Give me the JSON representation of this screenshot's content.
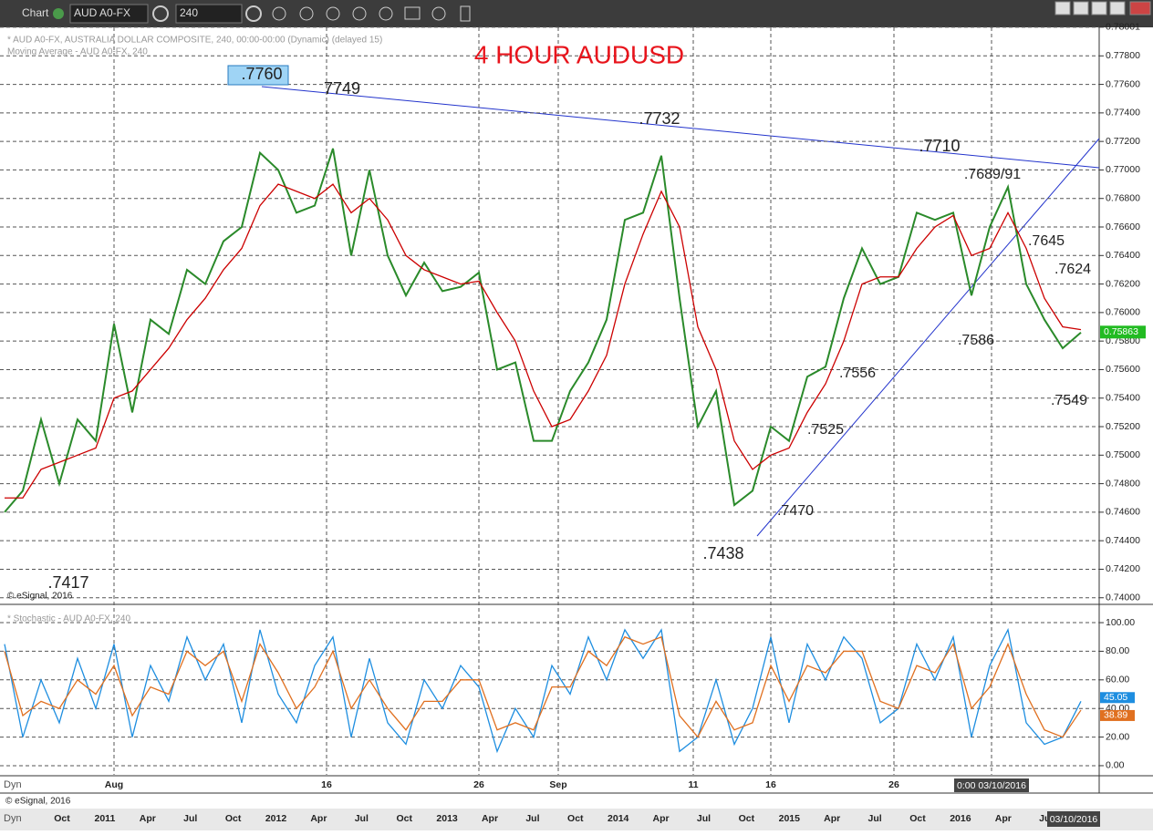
{
  "toolbar": {
    "app": "Chart",
    "symbol": "AUD A0-FX",
    "interval": "240"
  },
  "chart_data": [
    {
      "type": "line",
      "header": "* AUD A0-FX, AUSTRALIA DOLLAR COMPOSITE, 240, 00:00-00:00 (Dynamic) (delayed 15)",
      "subheader": "Moving Average - AUD A0-FX, 240",
      "title": "4 HOUR AUDUSD",
      "copyright": "© eSignal, 2016",
      "ylim": [
        0.7396,
        0.78
      ],
      "yticks": [
        0.78001,
        {
          "value": 0.778,
          "label": "0.77800"
        },
        {
          "value": 0.776,
          "label": "0.77600"
        },
        {
          "value": 0.774,
          "label": "0.77400"
        },
        {
          "value": 0.772,
          "label": "0.77200"
        },
        {
          "value": 0.77,
          "label": "0.77000"
        },
        {
          "value": 0.768,
          "label": "0.76800"
        },
        {
          "value": 0.766,
          "label": "0.76600"
        },
        {
          "value": 0.764,
          "label": "0.76400"
        },
        {
          "value": 0.762,
          "label": "0.76200"
        },
        {
          "value": 0.76,
          "label": "0.76000"
        },
        {
          "value": 0.758,
          "label": "0.75800"
        },
        {
          "value": 0.756,
          "label": "0.75600"
        },
        {
          "value": 0.754,
          "label": "0.75400"
        },
        {
          "value": 0.752,
          "label": "0.75200"
        },
        {
          "value": 0.75,
          "label": "0.75000"
        },
        {
          "value": 0.748,
          "label": "0.74800"
        },
        {
          "value": 0.746,
          "label": "0.74600"
        },
        {
          "value": 0.744,
          "label": "0.74400"
        },
        {
          "value": 0.742,
          "label": "0.74200"
        },
        {
          "value": 0.74,
          "label": "0.74000"
        }
      ],
      "series": [
        {
          "color": "#2a8a2a",
          "values": [
            0.746,
            0.7475,
            0.7525,
            0.748,
            0.7525,
            0.751,
            0.7592,
            0.753,
            0.7595,
            0.7585,
            0.763,
            0.762,
            0.765,
            0.766,
            0.7712,
            0.77,
            0.767,
            0.7675,
            0.7715,
            0.764,
            0.77,
            0.764,
            0.7612,
            0.7635,
            0.7615,
            0.7618,
            0.7628,
            0.756,
            0.7565,
            0.751,
            0.751,
            0.7545,
            0.7565,
            0.7595,
            0.7665,
            0.767,
            0.771,
            0.761,
            0.752,
            0.7545,
            0.7465,
            0.7475,
            0.752,
            0.751,
            0.7555,
            0.7562,
            0.761,
            0.7645,
            0.762,
            0.7625,
            0.767,
            0.7665,
            0.767,
            0.7612,
            0.766,
            0.7688,
            0.762,
            0.7595,
            0.7575,
            0.7586
          ]
        },
        {
          "color": "#cc0000",
          "values": [
            0.747,
            0.747,
            0.749,
            0.7495,
            0.75,
            0.7505,
            0.754,
            0.7545,
            0.756,
            0.7575,
            0.7595,
            0.761,
            0.763,
            0.7645,
            0.7675,
            0.769,
            0.7685,
            0.768,
            0.769,
            0.767,
            0.768,
            0.7665,
            0.764,
            0.763,
            0.7625,
            0.762,
            0.7622,
            0.76,
            0.758,
            0.7545,
            0.752,
            0.7525,
            0.7545,
            0.757,
            0.762,
            0.7655,
            0.7685,
            0.766,
            0.759,
            0.756,
            0.751,
            0.749,
            0.75,
            0.7505,
            0.753,
            0.755,
            0.758,
            0.762,
            0.7625,
            0.7625,
            0.7645,
            0.766,
            0.7668,
            0.764,
            0.7645,
            0.767,
            0.7645,
            0.761,
            0.759,
            0.7588
          ]
        }
      ],
      "current": 0.75863,
      "annotations": [
        ".7760",
        "7749",
        ".7732",
        ".7710",
        ".7689/91",
        ".7645",
        ".7624",
        ".7586",
        ".7549",
        ".7556",
        ".7525",
        ".7470",
        ".7438",
        ".7417"
      ]
    },
    {
      "type": "line",
      "header": "* Stochastic - AUD A0-FX, 240",
      "ylim": [
        -6.4,
        111.5
      ],
      "yticks": [
        {
          "value": 100,
          "label": "100.00"
        },
        {
          "value": 80,
          "label": "80.00"
        },
        {
          "value": 60,
          "label": "60.00"
        },
        {
          "value": 40,
          "label": "40.00"
        },
        {
          "value": 20,
          "label": "20.00"
        },
        {
          "value": 0,
          "label": "0.00"
        }
      ],
      "series": [
        {
          "color": "#1e8ee0",
          "values": [
            85,
            20,
            60,
            30,
            75,
            40,
            85,
            20,
            70,
            45,
            90,
            60,
            85,
            30,
            95,
            50,
            30,
            70,
            90,
            20,
            75,
            30,
            15,
            60,
            40,
            70,
            55,
            10,
            40,
            20,
            70,
            50,
            90,
            60,
            95,
            75,
            95,
            10,
            20,
            60,
            15,
            40,
            90,
            30,
            85,
            60,
            90,
            75,
            30,
            40,
            85,
            60,
            90,
            20,
            70,
            95,
            30,
            15,
            20,
            45.05
          ]
        },
        {
          "color": "#e07020",
          "values": [
            80,
            35,
            45,
            40,
            60,
            50,
            70,
            35,
            55,
            50,
            80,
            70,
            80,
            45,
            85,
            65,
            40,
            55,
            80,
            40,
            60,
            40,
            25,
            45,
            45,
            60,
            60,
            25,
            30,
            25,
            55,
            55,
            80,
            70,
            90,
            85,
            90,
            35,
            20,
            45,
            25,
            30,
            70,
            45,
            70,
            65,
            80,
            80,
            45,
            40,
            70,
            65,
            85,
            40,
            55,
            85,
            50,
            25,
            20,
            38.89
          ]
        }
      ]
    }
  ],
  "time_axis": {
    "upper": [
      "Aug",
      "16",
      "26",
      "Sep",
      "11",
      "16",
      "26"
    ],
    "cursor": "0:00 03/10/2016",
    "lower": [
      "Oct",
      "2011",
      "Apr",
      "Jul",
      "Oct",
      "2012",
      "Apr",
      "Jul",
      "Oct",
      "2013",
      "Apr",
      "Jul",
      "Oct",
      "2014",
      "Apr",
      "Jul",
      "Oct",
      "2015",
      "Apr",
      "Jul",
      "Oct",
      "2016",
      "Apr",
      "Jul"
    ],
    "lower_cursor": "03/10/2016"
  },
  "status": {
    "dyn": "Dyn",
    "copyright": "© eSignal, 2016"
  }
}
